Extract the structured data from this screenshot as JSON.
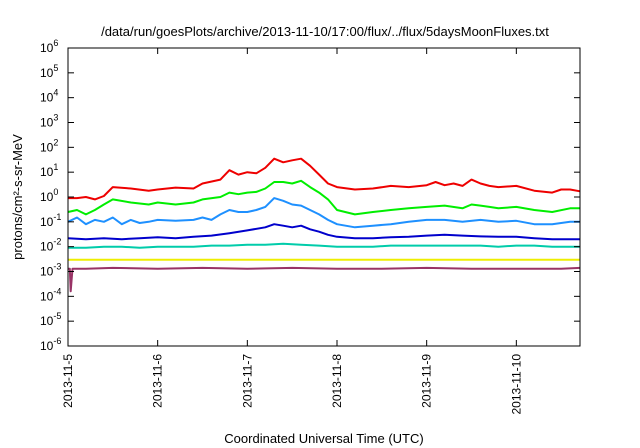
{
  "chart_data": {
    "type": "line",
    "title": "/data/run/goesPlots/archive/2013-11-10/17:00/flux/../flux/5daysMoonFluxes.txt",
    "xlabel": "Coordinated Universal Time (UTC)",
    "ylabel": "protons/cm²-s-sr-MeV",
    "yscale": "log",
    "ylim": [
      1e-06,
      1000000.0
    ],
    "xlim": [
      "2013-11-05",
      "2013-11-10T17:00"
    ],
    "y_ticks": [
      {
        "base": "10",
        "exp": "-6",
        "value": 1e-06
      },
      {
        "base": "10",
        "exp": "-5",
        "value": 1e-05
      },
      {
        "base": "10",
        "exp": "-4",
        "value": 0.0001
      },
      {
        "base": "10",
        "exp": "-3",
        "value": 0.001
      },
      {
        "base": "10",
        "exp": "-2",
        "value": 0.01
      },
      {
        "base": "10",
        "exp": "-1",
        "value": 0.1
      },
      {
        "base": "10",
        "exp": "0",
        "value": 1
      },
      {
        "base": "10",
        "exp": "1",
        "value": 10
      },
      {
        "base": "10",
        "exp": "2",
        "value": 100
      },
      {
        "base": "10",
        "exp": "3",
        "value": 1000
      },
      {
        "base": "10",
        "exp": "4",
        "value": 10000
      },
      {
        "base": "10",
        "exp": "5",
        "value": 100000
      },
      {
        "base": "10",
        "exp": "6",
        "value": 1000000
      }
    ],
    "x_ticks": [
      "2013-11-5",
      "2013-11-6",
      "2013-11-7",
      "2013-11-8",
      "2013-11-9",
      "2013-11-10"
    ],
    "x_tick_days": [
      0,
      1,
      2,
      3,
      4,
      5
    ],
    "x_end_days": 5.71,
    "grid": false,
    "series": [
      {
        "color": "#ee0000",
        "points": [
          [
            0.0,
            0.9
          ],
          [
            0.1,
            0.9
          ],
          [
            0.2,
            1.0
          ],
          [
            0.3,
            0.8
          ],
          [
            0.4,
            1.1
          ],
          [
            0.5,
            2.5
          ],
          [
            0.7,
            2.2
          ],
          [
            0.9,
            1.8
          ],
          [
            1.0,
            2.0
          ],
          [
            1.2,
            2.4
          ],
          [
            1.4,
            2.2
          ],
          [
            1.5,
            3.5
          ],
          [
            1.7,
            5.0
          ],
          [
            1.8,
            12
          ],
          [
            1.9,
            8.0
          ],
          [
            2.0,
            10
          ],
          [
            2.1,
            9.0
          ],
          [
            2.2,
            15
          ],
          [
            2.3,
            35
          ],
          [
            2.4,
            25
          ],
          [
            2.5,
            30
          ],
          [
            2.6,
            35
          ],
          [
            2.7,
            18
          ],
          [
            2.8,
            8.0
          ],
          [
            2.9,
            3.5
          ],
          [
            3.0,
            2.5
          ],
          [
            3.2,
            2.0
          ],
          [
            3.4,
            2.2
          ],
          [
            3.6,
            2.8
          ],
          [
            3.8,
            2.5
          ],
          [
            4.0,
            3.0
          ],
          [
            4.1,
            4.0
          ],
          [
            4.2,
            3.0
          ],
          [
            4.3,
            3.5
          ],
          [
            4.4,
            2.8
          ],
          [
            4.5,
            5.0
          ],
          [
            4.6,
            3.5
          ],
          [
            4.7,
            2.8
          ],
          [
            4.8,
            2.5
          ],
          [
            5.0,
            2.8
          ],
          [
            5.2,
            1.8
          ],
          [
            5.4,
            1.5
          ],
          [
            5.5,
            2.0
          ],
          [
            5.6,
            2.0
          ],
          [
            5.71,
            1.7
          ]
        ]
      },
      {
        "color": "#00ee00",
        "points": [
          [
            0.0,
            0.25
          ],
          [
            0.1,
            0.3
          ],
          [
            0.2,
            0.2
          ],
          [
            0.3,
            0.3
          ],
          [
            0.4,
            0.5
          ],
          [
            0.5,
            0.8
          ],
          [
            0.7,
            0.6
          ],
          [
            0.9,
            0.5
          ],
          [
            1.0,
            0.6
          ],
          [
            1.2,
            0.5
          ],
          [
            1.4,
            0.6
          ],
          [
            1.5,
            0.8
          ],
          [
            1.7,
            1.0
          ],
          [
            1.8,
            1.5
          ],
          [
            1.9,
            1.3
          ],
          [
            2.0,
            1.5
          ],
          [
            2.1,
            1.6
          ],
          [
            2.2,
            2.2
          ],
          [
            2.3,
            4.0
          ],
          [
            2.4,
            4.0
          ],
          [
            2.5,
            3.5
          ],
          [
            2.6,
            4.5
          ],
          [
            2.7,
            2.5
          ],
          [
            2.8,
            1.5
          ],
          [
            2.9,
            0.8
          ],
          [
            3.0,
            0.3
          ],
          [
            3.2,
            0.2
          ],
          [
            3.4,
            0.25
          ],
          [
            3.6,
            0.3
          ],
          [
            3.8,
            0.35
          ],
          [
            4.0,
            0.4
          ],
          [
            4.2,
            0.45
          ],
          [
            4.4,
            0.35
          ],
          [
            4.5,
            0.5
          ],
          [
            4.6,
            0.45
          ],
          [
            4.7,
            0.4
          ],
          [
            4.8,
            0.35
          ],
          [
            5.0,
            0.4
          ],
          [
            5.2,
            0.3
          ],
          [
            5.4,
            0.25
          ],
          [
            5.6,
            0.35
          ],
          [
            5.71,
            0.35
          ]
        ]
      },
      {
        "color": "#1e90ff",
        "points": [
          [
            0.0,
            0.1
          ],
          [
            0.1,
            0.15
          ],
          [
            0.2,
            0.08
          ],
          [
            0.3,
            0.12
          ],
          [
            0.4,
            0.1
          ],
          [
            0.5,
            0.15
          ],
          [
            0.6,
            0.08
          ],
          [
            0.7,
            0.12
          ],
          [
            0.8,
            0.09
          ],
          [
            0.9,
            0.1
          ],
          [
            1.0,
            0.12
          ],
          [
            1.2,
            0.11
          ],
          [
            1.4,
            0.12
          ],
          [
            1.5,
            0.15
          ],
          [
            1.6,
            0.12
          ],
          [
            1.7,
            0.2
          ],
          [
            1.8,
            0.3
          ],
          [
            1.9,
            0.25
          ],
          [
            2.0,
            0.25
          ],
          [
            2.1,
            0.3
          ],
          [
            2.2,
            0.4
          ],
          [
            2.3,
            0.9
          ],
          [
            2.4,
            0.7
          ],
          [
            2.5,
            0.5
          ],
          [
            2.6,
            0.45
          ],
          [
            2.7,
            0.3
          ],
          [
            2.8,
            0.2
          ],
          [
            2.9,
            0.12
          ],
          [
            3.0,
            0.08
          ],
          [
            3.2,
            0.06
          ],
          [
            3.4,
            0.07
          ],
          [
            3.6,
            0.08
          ],
          [
            3.8,
            0.1
          ],
          [
            4.0,
            0.12
          ],
          [
            4.2,
            0.12
          ],
          [
            4.4,
            0.1
          ],
          [
            4.6,
            0.12
          ],
          [
            4.8,
            0.1
          ],
          [
            5.0,
            0.11
          ],
          [
            5.2,
            0.08
          ],
          [
            5.4,
            0.08
          ],
          [
            5.6,
            0.1
          ],
          [
            5.71,
            0.1
          ]
        ]
      },
      {
        "color": "#0000cc",
        "points": [
          [
            0.0,
            0.022
          ],
          [
            0.2,
            0.02
          ],
          [
            0.4,
            0.022
          ],
          [
            0.6,
            0.02
          ],
          [
            0.8,
            0.022
          ],
          [
            1.0,
            0.024
          ],
          [
            1.2,
            0.022
          ],
          [
            1.4,
            0.025
          ],
          [
            1.6,
            0.028
          ],
          [
            1.8,
            0.035
          ],
          [
            2.0,
            0.045
          ],
          [
            2.2,
            0.06
          ],
          [
            2.3,
            0.08
          ],
          [
            2.4,
            0.07
          ],
          [
            2.5,
            0.06
          ],
          [
            2.6,
            0.07
          ],
          [
            2.7,
            0.05
          ],
          [
            2.8,
            0.04
          ],
          [
            2.9,
            0.03
          ],
          [
            3.0,
            0.025
          ],
          [
            3.2,
            0.022
          ],
          [
            3.4,
            0.022
          ],
          [
            3.6,
            0.024
          ],
          [
            3.8,
            0.025
          ],
          [
            4.0,
            0.028
          ],
          [
            4.2,
            0.03
          ],
          [
            4.4,
            0.028
          ],
          [
            4.6,
            0.026
          ],
          [
            4.8,
            0.025
          ],
          [
            5.0,
            0.025
          ],
          [
            5.2,
            0.022
          ],
          [
            5.4,
            0.02
          ],
          [
            5.6,
            0.02
          ],
          [
            5.71,
            0.02
          ]
        ]
      },
      {
        "color": "#00ccaa",
        "points": [
          [
            0.0,
            0.009
          ],
          [
            0.2,
            0.009
          ],
          [
            0.4,
            0.01
          ],
          [
            0.6,
            0.01
          ],
          [
            0.8,
            0.009
          ],
          [
            1.0,
            0.01
          ],
          [
            1.2,
            0.01
          ],
          [
            1.4,
            0.01
          ],
          [
            1.6,
            0.011
          ],
          [
            1.8,
            0.011
          ],
          [
            2.0,
            0.012
          ],
          [
            2.2,
            0.012
          ],
          [
            2.4,
            0.013
          ],
          [
            2.6,
            0.012
          ],
          [
            2.8,
            0.011
          ],
          [
            3.0,
            0.01
          ],
          [
            3.2,
            0.01
          ],
          [
            3.4,
            0.01
          ],
          [
            3.6,
            0.011
          ],
          [
            3.8,
            0.011
          ],
          [
            4.0,
            0.011
          ],
          [
            4.2,
            0.011
          ],
          [
            4.4,
            0.011
          ],
          [
            4.6,
            0.011
          ],
          [
            4.8,
            0.01
          ],
          [
            5.0,
            0.011
          ],
          [
            5.2,
            0.011
          ],
          [
            5.4,
            0.01
          ],
          [
            5.6,
            0.01
          ],
          [
            5.71,
            0.01
          ]
        ]
      },
      {
        "color": "#eeee00",
        "points": [
          [
            0.0,
            0.003
          ],
          [
            0.5,
            0.003
          ],
          [
            1.0,
            0.003
          ],
          [
            1.5,
            0.003
          ],
          [
            2.0,
            0.003
          ],
          [
            2.5,
            0.003
          ],
          [
            3.0,
            0.003
          ],
          [
            3.5,
            0.003
          ],
          [
            4.0,
            0.003
          ],
          [
            4.5,
            0.003
          ],
          [
            5.0,
            0.003
          ],
          [
            5.5,
            0.003
          ],
          [
            5.71,
            0.003
          ]
        ]
      },
      {
        "color": "#993366",
        "points": [
          [
            0.0,
            0.0013
          ],
          [
            0.02,
            0.0013
          ],
          [
            0.03,
            0.00016
          ],
          [
            0.05,
            0.0013
          ],
          [
            0.2,
            0.0013
          ],
          [
            0.5,
            0.0014
          ],
          [
            1.0,
            0.0013
          ],
          [
            1.5,
            0.0014
          ],
          [
            2.0,
            0.0013
          ],
          [
            2.5,
            0.0014
          ],
          [
            3.0,
            0.0013
          ],
          [
            3.5,
            0.0013
          ],
          [
            4.0,
            0.0014
          ],
          [
            4.5,
            0.0013
          ],
          [
            5.0,
            0.0013
          ],
          [
            5.5,
            0.0013
          ],
          [
            5.71,
            0.0014
          ]
        ]
      }
    ]
  }
}
